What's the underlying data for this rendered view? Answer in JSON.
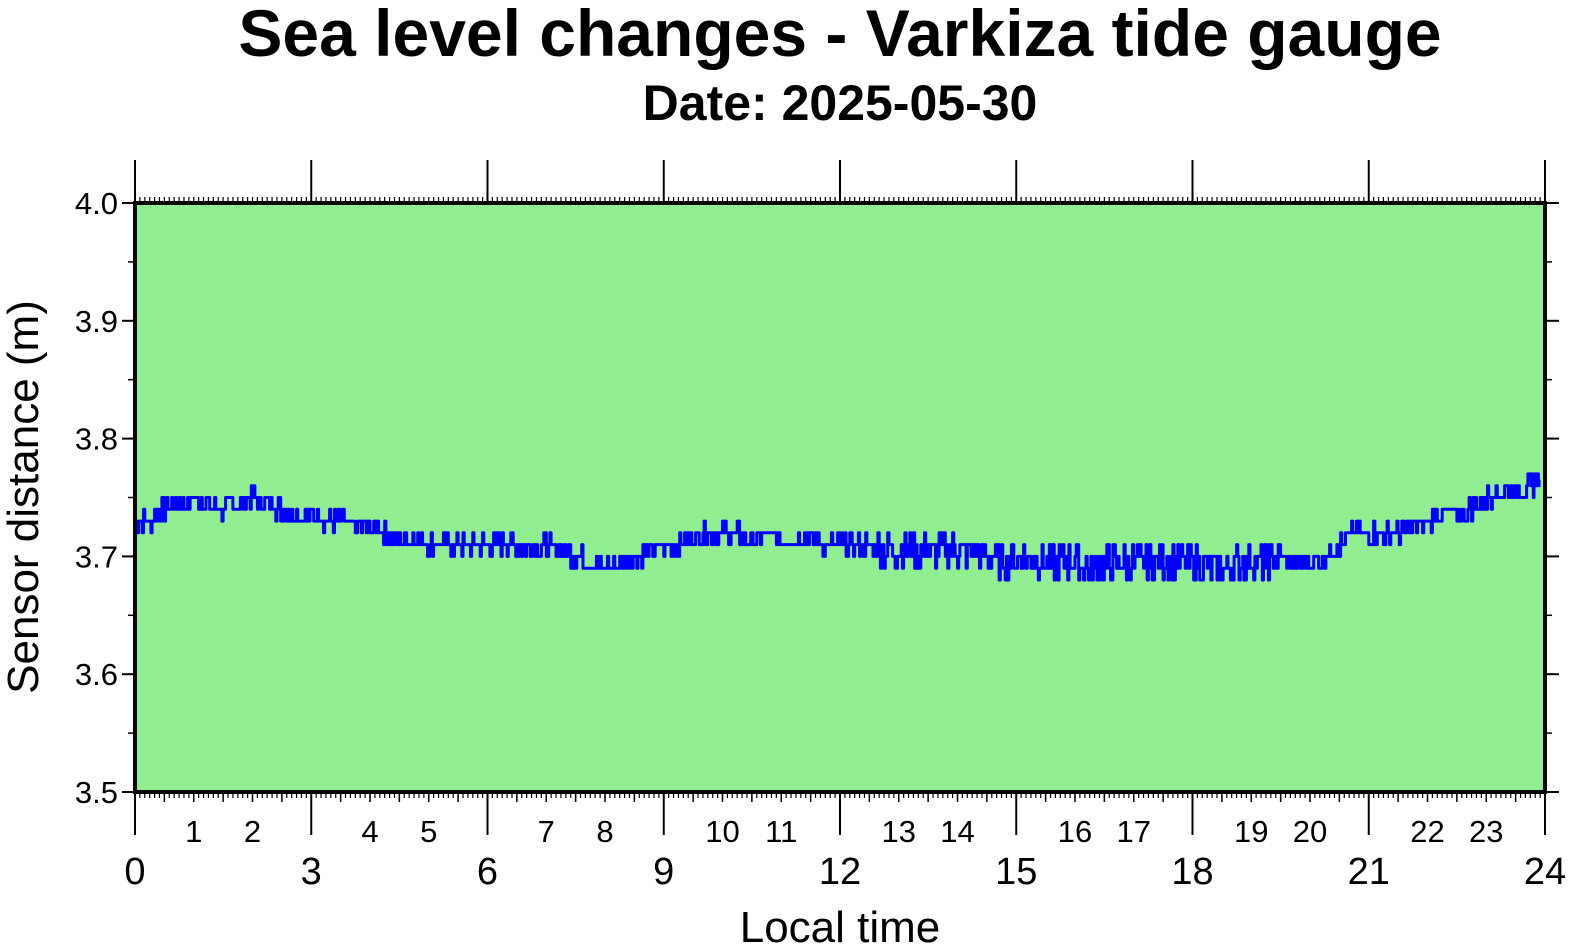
{
  "chart_data": {
    "type": "line",
    "title": "Sea level changes - Varkiza tide gauge",
    "subtitle": "Date: 2025-05-30",
    "xlabel": "Local time",
    "ylabel": "Sensor distance (m)",
    "xlim": [
      0,
      24
    ],
    "ylim": [
      3.5,
      4.0
    ],
    "x_major_ticks": [
      "0",
      "3",
      "6",
      "9",
      "12",
      "15",
      "18",
      "21",
      "24"
    ],
    "x_minor_ticks": [
      "1",
      "2",
      "4",
      "5",
      "7",
      "8",
      "10",
      "11",
      "13",
      "14",
      "16",
      "17",
      "19",
      "20",
      "22",
      "23"
    ],
    "y_ticks": [
      "3.5",
      "3.6",
      "3.7",
      "3.8",
      "3.9",
      "4.0"
    ],
    "grid": false,
    "colors": {
      "background": "#90ee90",
      "line": "#0000ff",
      "frame": "#000000"
    },
    "series": [
      {
        "x": [
          0.0,
          0.25,
          0.5,
          0.75,
          1.0,
          1.25,
          1.5,
          1.75,
          2.0,
          2.25,
          2.5,
          2.75,
          3.0,
          3.25,
          3.5,
          3.75,
          4.0,
          4.25,
          4.5,
          4.75,
          5.0,
          5.25,
          5.5,
          5.75,
          6.0,
          6.25,
          6.5,
          6.75,
          7.0,
          7.25,
          7.5,
          7.75,
          8.0,
          8.25,
          8.5,
          8.75,
          9.0,
          9.25,
          9.5,
          9.75,
          10.0,
          10.25,
          10.5,
          10.75,
          11.0,
          11.25,
          11.5,
          11.75,
          12.0,
          12.25,
          12.5,
          12.75,
          13.0,
          13.25,
          13.5,
          13.75,
          14.0,
          14.25,
          14.5,
          14.75,
          15.0,
          15.25,
          15.5,
          15.75,
          16.0,
          16.25,
          16.5,
          16.75,
          17.0,
          17.25,
          17.5,
          17.75,
          18.0,
          18.25,
          18.5,
          18.75,
          19.0,
          19.25,
          19.5,
          19.75,
          20.0,
          20.25,
          20.5,
          20.75,
          21.0,
          21.25,
          21.5,
          21.75,
          22.0,
          22.25,
          22.5,
          22.75,
          23.0,
          23.25,
          23.5,
          23.75,
          23.9
        ],
        "y": [
          3.73,
          3.73,
          3.74,
          3.745,
          3.75,
          3.745,
          3.74,
          3.745,
          3.75,
          3.745,
          3.74,
          3.735,
          3.735,
          3.73,
          3.73,
          3.725,
          3.725,
          3.72,
          3.715,
          3.715,
          3.71,
          3.71,
          3.71,
          3.71,
          3.71,
          3.71,
          3.71,
          3.705,
          3.71,
          3.705,
          3.7,
          3.695,
          3.69,
          3.695,
          3.7,
          3.705,
          3.71,
          3.71,
          3.715,
          3.72,
          3.72,
          3.72,
          3.715,
          3.72,
          3.715,
          3.715,
          3.715,
          3.71,
          3.71,
          3.71,
          3.71,
          3.705,
          3.705,
          3.705,
          3.705,
          3.705,
          3.705,
          3.705,
          3.7,
          3.695,
          3.7,
          3.7,
          3.695,
          3.695,
          3.695,
          3.69,
          3.695,
          3.695,
          3.695,
          3.695,
          3.695,
          3.695,
          3.695,
          3.69,
          3.69,
          3.695,
          3.695,
          3.695,
          3.7,
          3.695,
          3.695,
          3.7,
          3.71,
          3.72,
          3.72,
          3.72,
          3.72,
          3.725,
          3.73,
          3.735,
          3.735,
          3.74,
          3.75,
          3.755,
          3.755,
          3.76,
          3.765
        ]
      }
    ]
  }
}
